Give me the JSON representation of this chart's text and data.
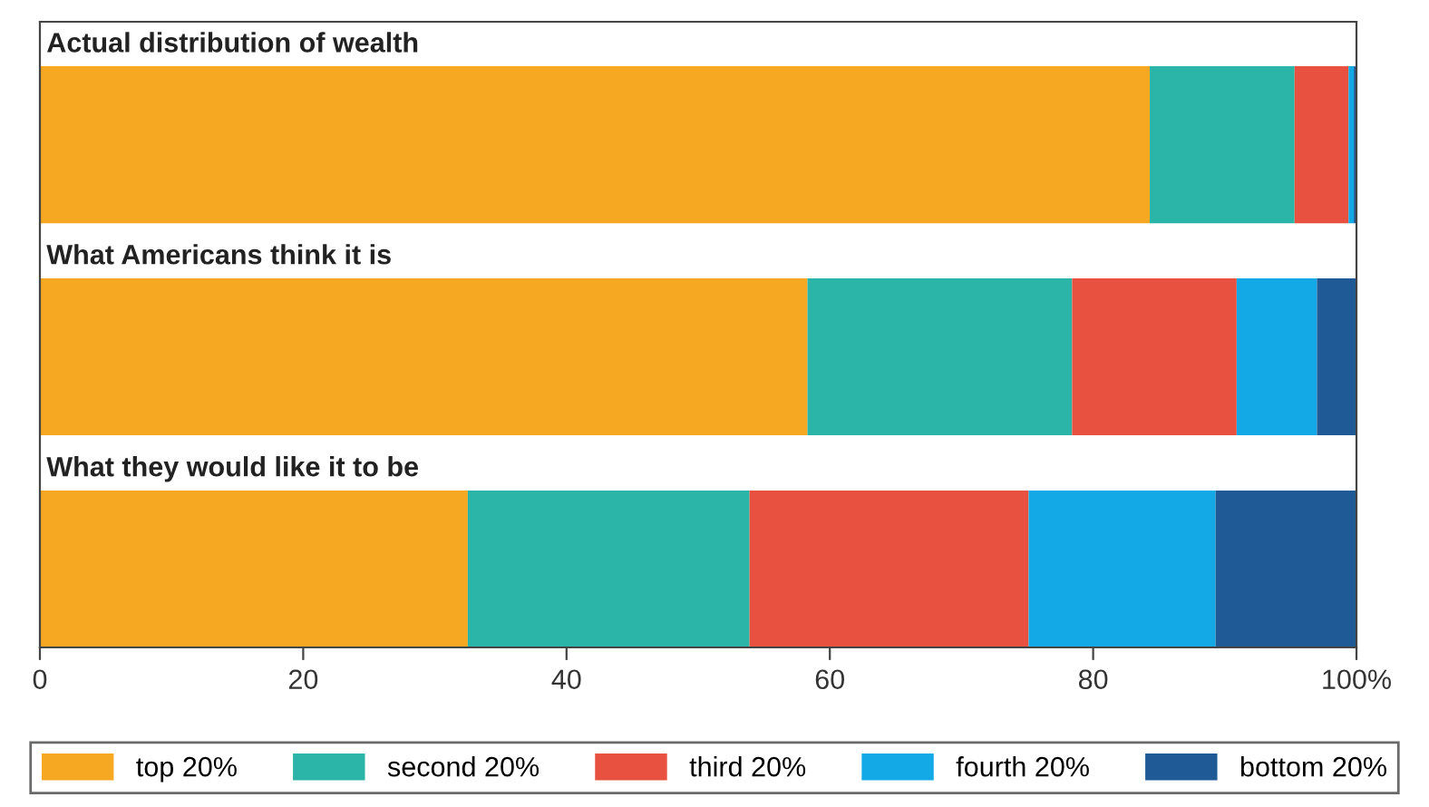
{
  "chart_data": {
    "type": "bar",
    "orientation": "horizontal",
    "stacked": true,
    "categories": [
      "Actual distribution of wealth",
      "What Americans think it is",
      "What they would like it to be"
    ],
    "series": [
      {
        "name": "top 20%",
        "color": "#f7a823",
        "values": [
          84.3,
          58.3,
          32.5
        ]
      },
      {
        "name": "second 20%",
        "color": "#2bb5a8",
        "values": [
          11.0,
          20.1,
          21.4
        ]
      },
      {
        "name": "third 20%",
        "color": "#e8503f",
        "values": [
          4.1,
          12.5,
          21.2
        ]
      },
      {
        "name": "fourth 20%",
        "color": "#13a9e6",
        "values": [
          0.4,
          6.1,
          14.2
        ]
      },
      {
        "name": "bottom 20%",
        "color": "#1f5a96",
        "values": [
          0.2,
          3.0,
          10.7
        ]
      }
    ],
    "xlim": [
      0,
      100
    ],
    "xticks": [
      0,
      20,
      40,
      60,
      80,
      {
        "value": 100,
        "label": "100%"
      }
    ],
    "grid": false,
    "legend": "bottom"
  }
}
